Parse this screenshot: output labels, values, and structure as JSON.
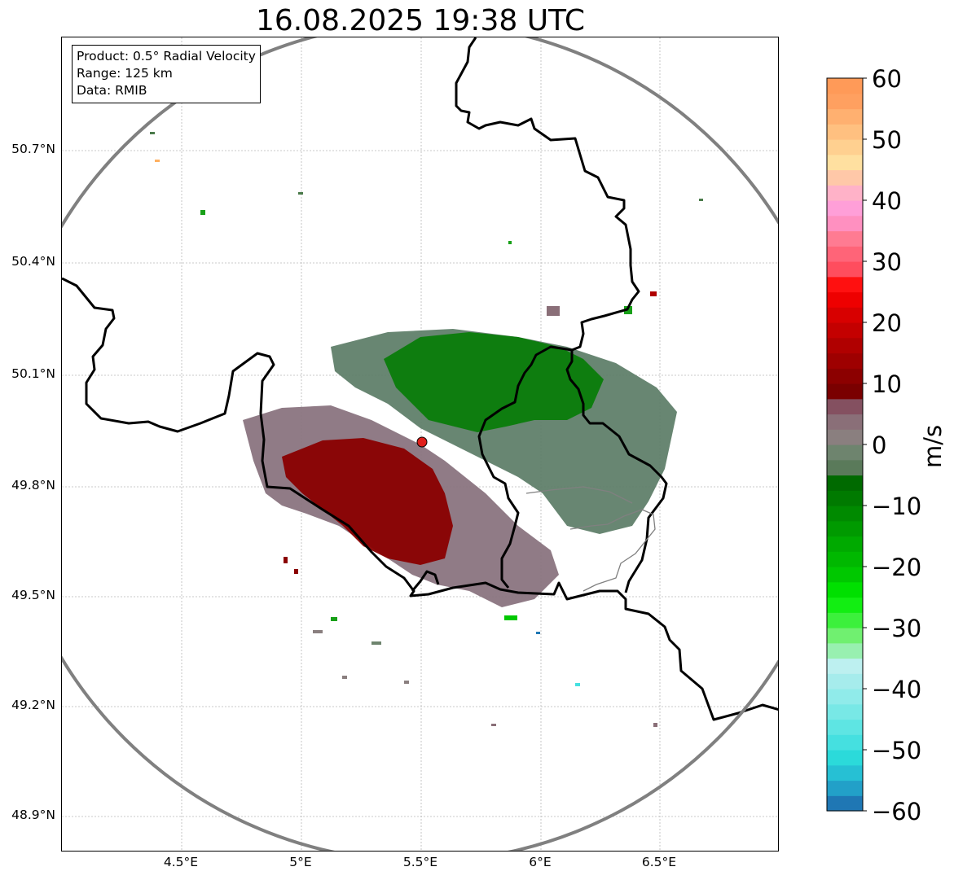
{
  "title": "16.08.2025 19:38 UTC",
  "info": {
    "product": "Product: 0.5° Radial Velocity",
    "range": "Range: 125 km",
    "source": "Data: RMIB"
  },
  "axes": {
    "lat_labels": [
      "50.7°N",
      "50.4°N",
      "50.1°N",
      "49.8°N",
      "49.5°N",
      "49.2°N",
      "48.9°N"
    ],
    "lon_labels": [
      "4.5°E",
      "5°E",
      "5.5°E",
      "6°E",
      "6.5°E"
    ]
  },
  "colorbar": {
    "unit": "m/s",
    "tick_labels": [
      "60",
      "50",
      "40",
      "30",
      "20",
      "10",
      "0",
      "−10",
      "−20",
      "−30",
      "−40",
      "−50",
      "−60"
    ],
    "range": [
      -60,
      60
    ],
    "colors": [
      "#1f77b4",
      "#22a0c8",
      "#26c0d4",
      "#2bdada",
      "#45e0e0",
      "#5ee5e3",
      "#78e8e6",
      "#90ebea",
      "#a6ecec",
      "#bdf0f0",
      "#98f0b0",
      "#70f070",
      "#3cf03c",
      "#12ee12",
      "#00e000",
      "#00c800",
      "#00b800",
      "#00aa00",
      "#009a00",
      "#008a00",
      "#007a00",
      "#006a00",
      "#5a7a5a",
      "#6e846e",
      "#8a7f7f",
      "#8a6f78",
      "#845060",
      "#7a0000",
      "#8c0000",
      "#9e0000",
      "#b00000",
      "#c40000",
      "#d80000",
      "#ee0000",
      "#ff1010",
      "#ff4d5e",
      "#ff6478",
      "#ff7b92",
      "#ff90c0",
      "#ff9fd8",
      "#ffb2c8",
      "#ffc8a8",
      "#ffe0a0",
      "#ffd090",
      "#ffc080",
      "#ffb070",
      "#ffa060",
      "#ff9a58"
    ]
  },
  "colors": {
    "range_ring": "#808080",
    "border": "#000000",
    "radar_site": "#e0201c",
    "grid": "#b0b0b0"
  }
}
